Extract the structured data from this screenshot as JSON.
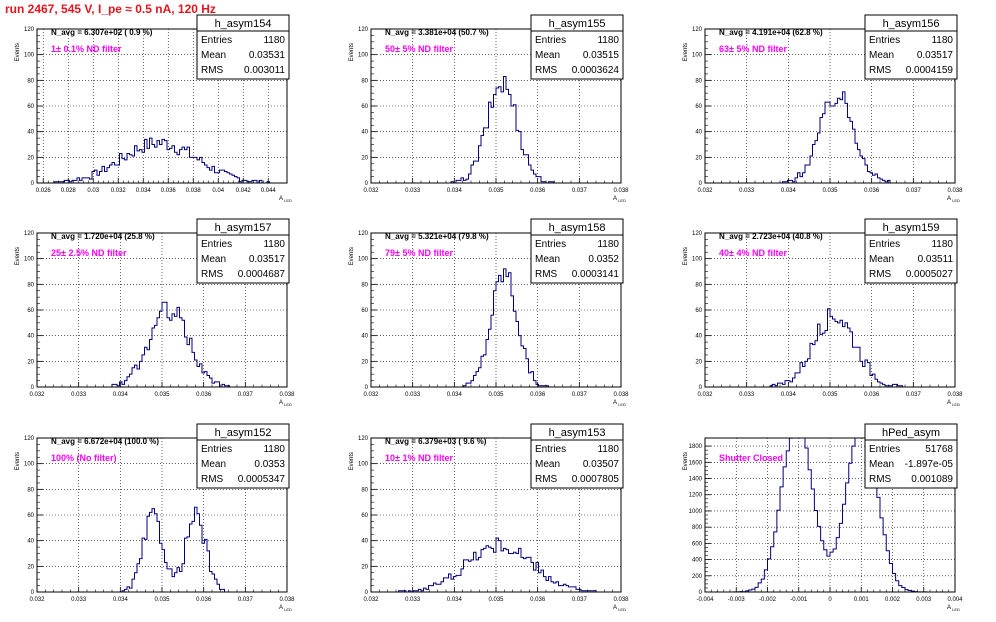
{
  "title": "run 2467,   545 V, I_pe ≈ 0.5 nA, 120 Hz",
  "colors": {
    "title": "#e4141e",
    "annotation": "#ff00ff",
    "hist": "#000080",
    "axis": "#000000",
    "grid": "#000000"
  },
  "chart_data": [
    {
      "type": "histogram",
      "name": "h_asym154",
      "ylabel": "Events",
      "xlabel": "A_LED",
      "ylim": [
        0,
        120
      ],
      "xlim": [
        0.0255,
        0.0455
      ],
      "xticks": [
        0.026,
        0.028,
        0.03,
        0.032,
        0.034,
        0.036,
        0.038,
        0.04,
        0.042,
        0.044
      ],
      "yticks": [
        0,
        20,
        40,
        60,
        80,
        100,
        120
      ],
      "stats": {
        "Entries": "1180",
        "Mean": "0.03531",
        "RMS": "0.003011"
      },
      "navg": "N_avg = 6.307e+02 ( 0.9 %)",
      "annotation": "1± 0.1% ND filter",
      "mean": 0.03531,
      "rms": 0.003011,
      "entries": 1180,
      "bin_width": 0.0002
    },
    {
      "type": "histogram",
      "name": "h_asym155",
      "ylabel": "Events",
      "xlabel": "A_LED",
      "ylim": [
        0,
        120
      ],
      "xlim": [
        0.032,
        0.038
      ],
      "xticks": [
        0.032,
        0.033,
        0.034,
        0.035,
        0.036,
        0.037,
        0.038
      ],
      "yticks": [
        0,
        20,
        40,
        60,
        80,
        100,
        120
      ],
      "stats": {
        "Entries": "1180",
        "Mean": "0.03515",
        "RMS": "0.0003624"
      },
      "navg": "N_avg = 3.381e+04 (50.7 %)",
      "annotation": "50± 5% ND filter",
      "mean": 0.03515,
      "rms": 0.0003624,
      "entries": 1180,
      "bin_width": 6e-05
    },
    {
      "type": "histogram",
      "name": "h_asym156",
      "ylabel": "Events",
      "xlabel": "A_LED",
      "ylim": [
        0,
        120
      ],
      "xlim": [
        0.032,
        0.038
      ],
      "xticks": [
        0.032,
        0.033,
        0.034,
        0.035,
        0.036,
        0.037,
        0.038
      ],
      "yticks": [
        0,
        20,
        40,
        60,
        80,
        100,
        120
      ],
      "stats": {
        "Entries": "1180",
        "Mean": "0.03517",
        "RMS": "0.0004159"
      },
      "navg": "N_avg = 4.191e+04 (62.8 %)",
      "annotation": "63± 5% ND filter",
      "mean": 0.03517,
      "rms": 0.0004159,
      "entries": 1180,
      "bin_width": 6e-05
    },
    {
      "type": "histogram",
      "name": "h_asym157",
      "ylabel": "Events",
      "xlabel": "A_LED",
      "ylim": [
        0,
        120
      ],
      "xlim": [
        0.032,
        0.038
      ],
      "xticks": [
        0.032,
        0.033,
        0.034,
        0.035,
        0.036,
        0.037,
        0.038
      ],
      "yticks": [
        0,
        20,
        40,
        60,
        80,
        100,
        120
      ],
      "stats": {
        "Entries": "1180",
        "Mean": "0.03517",
        "RMS": "0.0004687"
      },
      "navg": "N_avg = 1.720e+04 (25.8 %)",
      "annotation": "25± 2.5% ND filter",
      "mean": 0.03517,
      "rms": 0.0004687,
      "entries": 1180,
      "bin_width": 6e-05
    },
    {
      "type": "histogram",
      "name": "h_asym158",
      "ylabel": "Events",
      "xlabel": "A_LED",
      "ylim": [
        0,
        120
      ],
      "xlim": [
        0.032,
        0.038
      ],
      "xticks": [
        0.032,
        0.033,
        0.034,
        0.035,
        0.036,
        0.037,
        0.038
      ],
      "yticks": [
        0,
        20,
        40,
        60,
        80,
        100,
        120
      ],
      "stats": {
        "Entries": "1180",
        "Mean": "0.0352",
        "RMS": "0.0003141"
      },
      "navg": "N_avg = 5.321e+04 (79.8 %)",
      "annotation": "79± 5% ND filter",
      "mean": 0.0352,
      "rms": 0.0003141,
      "entries": 1180,
      "bin_width": 6e-05
    },
    {
      "type": "histogram",
      "name": "h_asym159",
      "ylabel": "Events",
      "xlabel": "A_LED",
      "ylim": [
        0,
        120
      ],
      "xlim": [
        0.032,
        0.038
      ],
      "xticks": [
        0.032,
        0.033,
        0.034,
        0.035,
        0.036,
        0.037,
        0.038
      ],
      "yticks": [
        0,
        20,
        40,
        60,
        80,
        100,
        120
      ],
      "stats": {
        "Entries": "1180",
        "Mean": "0.03511",
        "RMS": "0.0005027"
      },
      "navg": "N_avg = 2.723e+04 (40.8 %)",
      "annotation": "40± 4% ND filter",
      "mean": 0.03511,
      "rms": 0.0005027,
      "entries": 1180,
      "bin_width": 6e-05
    },
    {
      "type": "histogram",
      "name": "h_asym152",
      "ylabel": "Events",
      "xlabel": "A_LED",
      "ylim": [
        0,
        120
      ],
      "xlim": [
        0.032,
        0.038
      ],
      "xticks": [
        0.032,
        0.033,
        0.034,
        0.035,
        0.036,
        0.037,
        0.038
      ],
      "yticks": [
        0,
        20,
        40,
        60,
        80,
        100,
        120
      ],
      "stats": {
        "Entries": "1180",
        "Mean": "0.0353",
        "RMS": "0.0005347"
      },
      "navg": "N_avg = 6.672e+04 (100.0 %)",
      "annotation": "100% (No filter)",
      "mean": 0.0353,
      "rms": 0.0005347,
      "entries": 1180,
      "bin_width": 6e-05,
      "bimodal": true
    },
    {
      "type": "histogram",
      "name": "h_asym153",
      "ylabel": "Events",
      "xlabel": "A_LED",
      "ylim": [
        0,
        120
      ],
      "xlim": [
        0.032,
        0.038
      ],
      "xticks": [
        0.032,
        0.033,
        0.034,
        0.035,
        0.036,
        0.037,
        0.038
      ],
      "yticks": [
        0,
        20,
        40,
        60,
        80,
        100,
        120
      ],
      "stats": {
        "Entries": "1180",
        "Mean": "0.03507",
        "RMS": "0.0007805"
      },
      "navg": "N_avg = 6.379e+03 ( 9.6 %)",
      "annotation": "10± 1% ND filter",
      "mean": 0.03507,
      "rms": 0.0007805,
      "entries": 1180,
      "bin_width": 6e-05
    },
    {
      "type": "histogram",
      "name": "hPed_asym",
      "ylabel": "Events",
      "xlabel": "A_LED",
      "ylim": [
        0,
        1900
      ],
      "xlim": [
        -0.004,
        0.004
      ],
      "xticks": [
        -0.004,
        -0.003,
        -0.002,
        -0.001,
        0,
        0.001,
        0.002,
        0.003,
        0.004
      ],
      "yticks": [
        0,
        200,
        400,
        600,
        800,
        1000,
        1200,
        1400,
        1600,
        1800
      ],
      "stats": {
        "Entries": "51768",
        "Mean": "-1.897e-05",
        "RMS": "0.001089"
      },
      "navg": "",
      "annotation": "Shutter Closed",
      "mean": -1.897e-05,
      "rms": 0.001089,
      "entries": 51768,
      "bin_width": 0.0001,
      "bimodal": true
    }
  ]
}
